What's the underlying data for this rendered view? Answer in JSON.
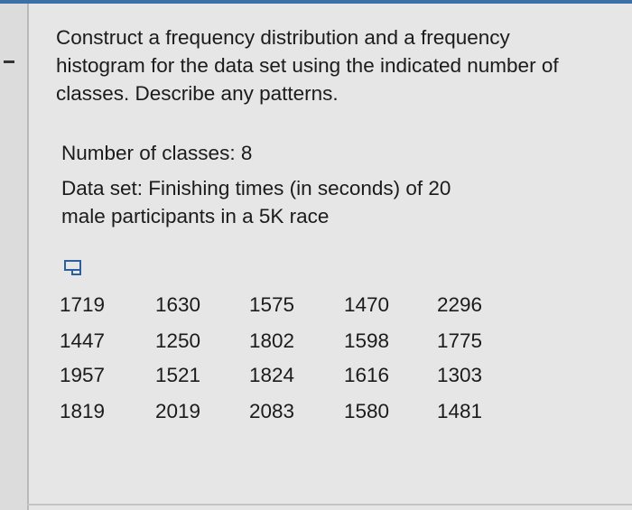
{
  "question": {
    "lines": [
      "Construct a frequency distribution and a frequency",
      "histogram for the data set using the indicated number of",
      "classes. Describe any patterns."
    ]
  },
  "number_of_classes": "Number of classes: 8",
  "data_set": {
    "lines": [
      "Data set: Finishing times (in seconds) of 20",
      "male participants in a 5K race"
    ]
  },
  "table": {
    "rows": [
      [
        1719,
        1630,
        1575,
        1470,
        2296
      ],
      [
        1447,
        1250,
        1802,
        1598,
        1775
      ],
      [
        1957,
        1521,
        1824,
        1616,
        1303
      ],
      [
        1819,
        2019,
        2083,
        1580,
        1481
      ]
    ]
  }
}
